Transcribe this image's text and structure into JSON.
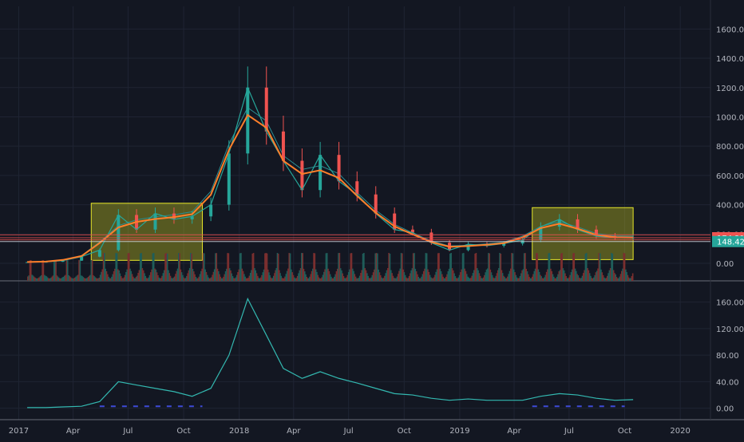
{
  "colors": {
    "background": "#131722",
    "grid": "#1f2433",
    "axis_text": "#b2b5be",
    "price_line": "#26a69a",
    "ema_fast": "#ff7f2a",
    "ema_slow": "#2a8e93",
    "bull_candle": "#26a69a",
    "bear_candle": "#ef5350",
    "volume_bull": "#1f5e5a",
    "volume_bear": "#7a2f2f",
    "box_fill": "#d4d420",
    "box_border": "#e6e62a",
    "hline_red": "#e84c4c",
    "hline_white": "#d1d4dc",
    "indicator_line": "#33b8b0",
    "indicator_dash": "#3e4bd8",
    "label_red_bg": "#ef5350",
    "label_teal_bg": "#26a69a"
  },
  "chart_data": [
    {
      "type": "line",
      "panel": "price",
      "ylim": [
        -120,
        1700
      ],
      "y_ticks": [
        "1600.00",
        "1400.00",
        "1200.00",
        "1000.00",
        "800.00",
        "600.00",
        "400.00",
        "200.00",
        "0.00"
      ],
      "y_tick_values": [
        1600,
        1400,
        1200,
        1000,
        800,
        600,
        400,
        200,
        0
      ],
      "x": [
        "2017-01",
        "2017-02",
        "2017-03",
        "2017-04",
        "2017-05",
        "2017-06",
        "2017-07",
        "2017-08",
        "2017-09",
        "2017-10",
        "2017-11",
        "2017-12",
        "2018-01",
        "2018-02",
        "2018-03",
        "2018-04",
        "2018-05",
        "2018-06",
        "2018-07",
        "2018-08",
        "2018-09",
        "2018-10",
        "2018-11",
        "2018-12",
        "2019-01",
        "2019-02",
        "2019-03",
        "2019-04",
        "2019-05",
        "2019-06",
        "2019-07",
        "2019-08",
        "2019-09",
        "2019-10"
      ],
      "series": [
        {
          "values": [
            8,
            10,
            18,
            45,
            90,
            330,
            230,
            340,
            300,
            320,
            400,
            750,
            1200,
            900,
            700,
            500,
            740,
            560,
            470,
            340,
            230,
            210,
            140,
            90,
            130,
            120,
            135,
            160,
            250,
            300,
            230,
            185,
            175,
            176
          ]
        }
      ],
      "rectangles": [
        {
          "x0": "2017-05-01",
          "x1": "2017-11-01",
          "y0": 20,
          "y1": 410
        },
        {
          "x0": "2019-05-01",
          "x1": "2019-10-15",
          "y0": 25,
          "y1": 380
        }
      ],
      "horizontal_lines": [
        194,
        174.21,
        160,
        148.42
      ],
      "price_labels": [
        "174.21",
        "148.42"
      ],
      "price_label_values": [
        174.21,
        148.42
      ]
    },
    {
      "type": "line",
      "panel": "indicator",
      "ylim": [
        -10,
        180
      ],
      "y_ticks": [
        "160.00",
        "120.00",
        "80.00",
        "40.00",
        "0.00"
      ],
      "y_tick_values": [
        160,
        120,
        80,
        40,
        0
      ],
      "x": [
        "2017-01",
        "2017-02",
        "2017-03",
        "2017-04",
        "2017-05",
        "2017-06",
        "2017-07",
        "2017-08",
        "2017-09",
        "2017-10",
        "2017-11",
        "2017-12",
        "2018-01",
        "2018-02",
        "2018-03",
        "2018-04",
        "2018-05",
        "2018-06",
        "2018-07",
        "2018-08",
        "2018-09",
        "2018-10",
        "2018-11",
        "2018-12",
        "2019-01",
        "2019-02",
        "2019-03",
        "2019-04",
        "2019-05",
        "2019-06",
        "2019-07",
        "2019-08",
        "2019-09",
        "2019-10"
      ],
      "series": [
        {
          "values": [
            1,
            1,
            2,
            3,
            10,
            40,
            35,
            30,
            25,
            18,
            30,
            80,
            165,
            110,
            60,
            45,
            55,
            45,
            38,
            30,
            22,
            20,
            15,
            12,
            14,
            12,
            12,
            12,
            18,
            22,
            20,
            15,
            12,
            13
          ]
        }
      ],
      "dashed_segments": [
        {
          "x0": "2017-05-15",
          "x1": "2017-11-01",
          "y": 3
        },
        {
          "x0": "2019-05-01",
          "x1": "2019-10-01",
          "y": 3
        }
      ]
    }
  ],
  "x_axis": {
    "ticks": [
      "2017",
      "Apr",
      "Jul",
      "Oct",
      "2018",
      "Apr",
      "Jul",
      "Oct",
      "2019",
      "Apr",
      "Jul",
      "Oct",
      "2020"
    ],
    "tick_dates": [
      "2017-01-01",
      "2017-04-01",
      "2017-07-01",
      "2017-10-01",
      "2018-01-01",
      "2018-04-01",
      "2018-07-01",
      "2018-10-01",
      "2019-01-01",
      "2019-04-01",
      "2019-07-01",
      "2019-10-01",
      "2020-01-01"
    ]
  }
}
